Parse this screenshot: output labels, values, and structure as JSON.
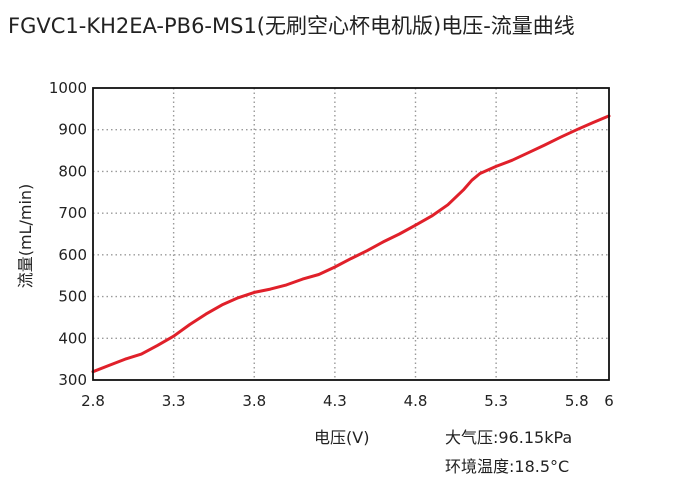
{
  "chart_data": {
    "type": "line",
    "title": "FGVC1-KH2EA-PB6-MS1(无刷空心杯电机版)电压-流量曲线",
    "xlabel": "电压(V)",
    "ylabel": "流量(mL/min)",
    "xlim": [
      2.8,
      6
    ],
    "ylim": [
      300,
      1000
    ],
    "xticks": [
      "2.8",
      "3.3",
      "3.8",
      "4.3",
      "4.8",
      "5.3",
      "5.8",
      "6"
    ],
    "xtick_values": [
      2.8,
      3.3,
      3.8,
      4.3,
      4.8,
      5.3,
      5.8,
      6.0
    ],
    "yticks": [
      "300",
      "400",
      "500",
      "600",
      "700",
      "800",
      "900",
      "1000"
    ],
    "ytick_values": [
      300,
      400,
      500,
      600,
      700,
      800,
      900,
      1000
    ],
    "grid": true,
    "series": [
      {
        "color": "#e0202a",
        "x": [
          2.8,
          2.9,
          3.0,
          3.1,
          3.2,
          3.3,
          3.4,
          3.5,
          3.6,
          3.7,
          3.8,
          3.9,
          4.0,
          4.1,
          4.2,
          4.3,
          4.4,
          4.5,
          4.6,
          4.7,
          4.8,
          4.9,
          5.0,
          5.1,
          5.15,
          5.2,
          5.3,
          5.4,
          5.5,
          5.6,
          5.7,
          5.8,
          5.9,
          6.0
        ],
        "values": [
          320,
          335,
          350,
          362,
          383,
          405,
          433,
          458,
          480,
          497,
          510,
          518,
          528,
          542,
          553,
          571,
          591,
          610,
          631,
          650,
          671,
          693,
          720,
          757,
          779,
          795,
          812,
          827,
          845,
          863,
          882,
          900,
          917,
          933
        ]
      }
    ]
  },
  "notes": {
    "pressure": "大气压:96.15kPa",
    "temperature": "环境温度:18.5°C"
  }
}
